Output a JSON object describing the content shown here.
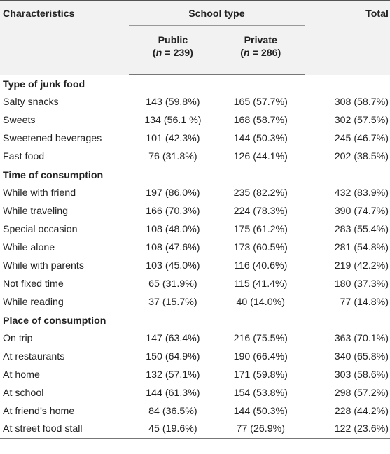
{
  "table": {
    "header": {
      "characteristics": "Characteristics",
      "school_type": "School type",
      "total": "Total",
      "public_label": "Public",
      "public_n": "(n = 239)",
      "private_label": "Private",
      "private_n": "(n = 286)"
    },
    "sections": [
      {
        "title": "Type of junk food",
        "rows": [
          [
            "Salty snacks",
            "143 (59.8%)",
            "165 (57.7%)",
            "308 (58.7%)"
          ],
          [
            "Sweets",
            "134 (56.1 %)",
            "168 (58.7%)",
            "302 (57.5%)"
          ],
          [
            "Sweetened beverages",
            "101 (42.3%)",
            "144 (50.3%)",
            "245 (46.7%)"
          ],
          [
            "Fast food",
            "76 (31.8%)",
            "126 (44.1%)",
            "202 (38.5%)"
          ]
        ]
      },
      {
        "title": "Time of consumption",
        "rows": [
          [
            "While with friend",
            "197 (86.0%)",
            "235 (82.2%)",
            "432 (83.9%)"
          ],
          [
            "While traveling",
            "166 (70.3%)",
            "224 (78.3%)",
            "390 (74.7%)"
          ],
          [
            "Special occasion",
            "108 (48.0%)",
            "175 (61.2%)",
            "283 (55.4%)"
          ],
          [
            "While alone",
            "108 (47.6%)",
            "173 (60.5%)",
            "281 (54.8%)"
          ],
          [
            "While with parents",
            "103 (45.0%)",
            "116 (40.6%)",
            "219 (42.2%)"
          ],
          [
            "Not fixed time",
            "65 (31.9%)",
            "115 (41.4%)",
            "180 (37.3%)"
          ],
          [
            "While reading",
            "37 (15.7%)",
            "40 (14.0%)",
            "77 (14.8%)"
          ]
        ]
      },
      {
        "title": "Place of consumption",
        "rows": [
          [
            "On trip",
            "147 (63.4%)",
            "216 (75.5%)",
            "363 (70.1%)"
          ],
          [
            "At restaurants",
            "150 (64.9%)",
            "190 (66.4%)",
            "340 (65.8%)"
          ],
          [
            "At home",
            "132 (57.1%)",
            "171 (59.8%)",
            "303 (58.6%)"
          ],
          [
            "At school",
            "144 (61.3%)",
            "154 (53.8%)",
            "298 (57.2%)"
          ],
          [
            "At friend’s home",
            "84 (36.5%)",
            "144 (50.3%)",
            "228 (44.2%)"
          ],
          [
            "At street food stall",
            "45 (19.6%)",
            "77 (26.9%)",
            "122 (23.6%)"
          ]
        ]
      }
    ]
  }
}
